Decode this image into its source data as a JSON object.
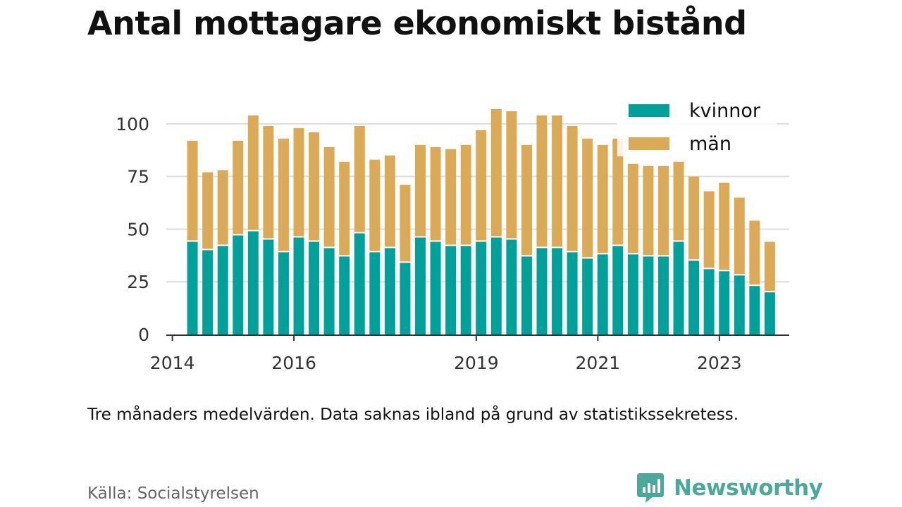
{
  "title": "Antal mottagare ekonomiskt bistånd",
  "note": "Tre månaders medelvärden. Data saknas ibland på grund av statistikssekretess.",
  "source": "Källa: Socialstyrelsen",
  "brand": {
    "name": "Newsworthy",
    "icon": "newsworthy-logo-icon",
    "color": "#4aa99a"
  },
  "chart_data": {
    "type": "bar",
    "stacked": true,
    "x": [
      2014.33,
      2014.58,
      2014.83,
      2015.08,
      2015.33,
      2015.58,
      2015.83,
      2016.08,
      2016.33,
      2016.58,
      2016.83,
      2017.08,
      2017.33,
      2017.58,
      2017.83,
      2018.08,
      2018.33,
      2018.58,
      2018.83,
      2019.08,
      2019.33,
      2019.58,
      2019.83,
      2020.08,
      2020.33,
      2020.58,
      2020.83,
      2021.08,
      2021.33,
      2021.58,
      2021.83,
      2022.08,
      2022.33,
      2022.58,
      2022.83,
      2023.08,
      2023.33,
      2023.58,
      2023.83
    ],
    "series": [
      {
        "name": "kvinnor",
        "color": "#00a19a",
        "values": [
          44,
          40,
          42,
          47,
          49,
          45,
          39,
          46,
          44,
          41,
          37,
          48,
          39,
          41,
          34,
          46,
          44,
          42,
          42,
          44,
          46,
          45,
          37,
          41,
          41,
          39,
          36,
          38,
          42,
          38,
          37,
          37,
          44,
          35,
          31,
          30,
          28,
          23,
          20
        ]
      },
      {
        "name": "män",
        "color": "#dbaa57",
        "values": [
          48,
          37,
          36,
          45,
          55,
          54,
          54,
          52,
          52,
          48,
          45,
          51,
          44,
          44,
          37,
          44,
          45,
          46,
          48,
          53,
          61,
          61,
          53,
          63,
          63,
          60,
          57,
          52,
          51,
          43,
          43,
          43,
          38,
          40,
          37,
          42,
          37,
          31,
          24
        ]
      }
    ],
    "x_ticks": [
      "2014",
      "2016",
      "2019",
      "2021",
      "2023"
    ],
    "x_tick_values": [
      2014,
      2016,
      2019,
      2021,
      2023
    ],
    "y_ticks": [
      "0",
      "25",
      "50",
      "75",
      "100"
    ],
    "y_tick_values": [
      0,
      25,
      50,
      75,
      100
    ],
    "xlim": [
      2013.9,
      2024.15
    ],
    "ylim": [
      0,
      112
    ],
    "grid": true,
    "legend": {
      "position": "top-right",
      "entries": [
        "kvinnor",
        "män"
      ]
    },
    "xlabel": "",
    "ylabel": ""
  }
}
